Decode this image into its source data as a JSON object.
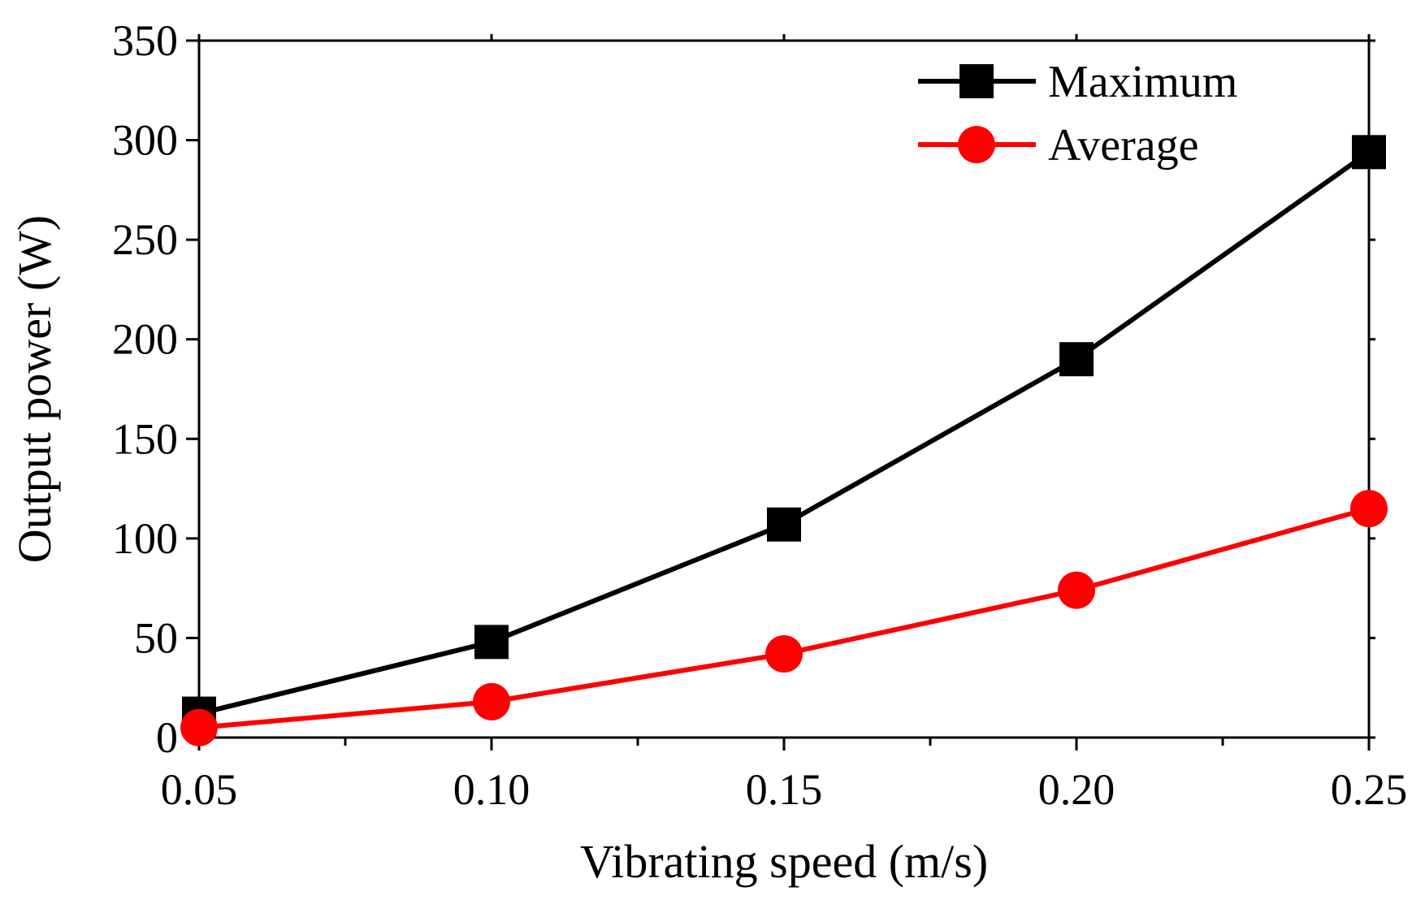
{
  "chart_data": {
    "type": "line",
    "title": "",
    "xlabel": "Vibrating speed (m/s)",
    "ylabel": "Output power (W)",
    "x": [
      0.05,
      0.1,
      0.15,
      0.2,
      0.25
    ],
    "xlim": [
      0.05,
      0.25
    ],
    "ylim": [
      0,
      350
    ],
    "x_ticks": [
      0.05,
      0.1,
      0.15,
      0.2,
      0.25
    ],
    "x_tick_labels": [
      "0.05",
      "0.10",
      "0.15",
      "0.20",
      "0.25"
    ],
    "x_minor_ticks": [
      0.075,
      0.125,
      0.175,
      0.225
    ],
    "y_ticks": [
      0,
      50,
      100,
      150,
      200,
      250,
      300,
      350
    ],
    "y_tick_labels": [
      "0",
      "50",
      "100",
      "150",
      "200",
      "250",
      "300",
      "350"
    ],
    "grid": false,
    "legend_position": "top-right",
    "series": [
      {
        "name": "Maximum",
        "marker": "square",
        "color": "#000000",
        "values": [
          12,
          48,
          107,
          190,
          294
        ]
      },
      {
        "name": "Average",
        "marker": "circle",
        "color": "#ff0000",
        "values": [
          5,
          18,
          42,
          74,
          115
        ]
      }
    ]
  }
}
